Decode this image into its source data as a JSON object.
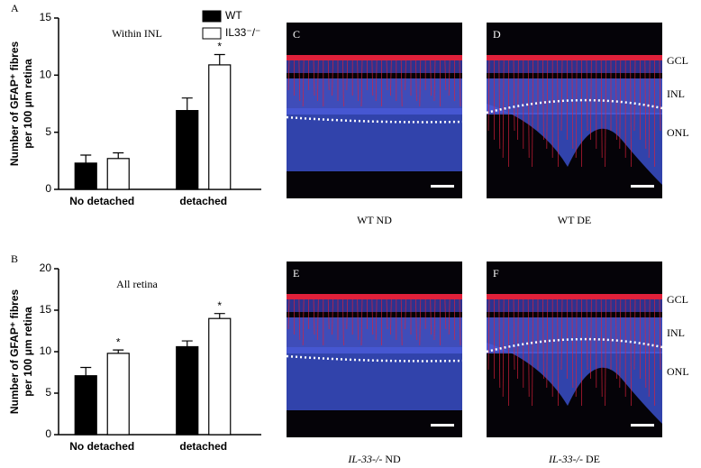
{
  "chart_data": [
    {
      "type": "bar",
      "panel": "A",
      "title": "Within INL",
      "y_label": [
        "Number of GFAP⁺ fibres",
        "per 100 μm retina"
      ],
      "categories": [
        "No detached",
        "detached"
      ],
      "series": [
        {
          "name": "WT",
          "color": "#000000",
          "values": [
            2.3,
            6.9
          ],
          "errors": [
            0.7,
            1.1
          ],
          "marks": [
            null,
            null
          ]
        },
        {
          "name": "IL33⁻/⁻",
          "color": "#ffffff",
          "values": [
            2.7,
            10.9
          ],
          "errors": [
            0.5,
            0.9
          ],
          "marks": [
            null,
            "*"
          ]
        }
      ],
      "ylim": [
        0,
        15
      ],
      "yticks": [
        0,
        5,
        10,
        15
      ],
      "grid": false,
      "legend": true
    },
    {
      "type": "bar",
      "panel": "B",
      "title": "All retina",
      "y_label": [
        "Number of GFAP⁺ fibres",
        "per 100 μm retina"
      ],
      "categories": [
        "No detached",
        "detached"
      ],
      "series": [
        {
          "name": "WT",
          "color": "#000000",
          "values": [
            7.1,
            10.6
          ],
          "errors": [
            1.0,
            0.7
          ],
          "marks": [
            null,
            null
          ]
        },
        {
          "name": "IL33⁻/⁻",
          "color": "#ffffff",
          "values": [
            9.8,
            14.0
          ],
          "errors": [
            0.4,
            0.6
          ],
          "marks": [
            "*",
            "*"
          ]
        }
      ],
      "ylim": [
        0,
        20
      ],
      "yticks": [
        0,
        5,
        10,
        15,
        20
      ],
      "grid": false,
      "legend": false
    }
  ],
  "panels": [
    {
      "letter": "C",
      "genotype": "WT",
      "condition": "ND",
      "italic": false,
      "layers": []
    },
    {
      "letter": "D",
      "genotype": "WT",
      "condition": "DE",
      "italic": false,
      "layers": [
        "GCL",
        "INL",
        "ONL"
      ]
    },
    {
      "letter": "E",
      "genotype": "IL-33-/-",
      "condition": "ND",
      "italic": true,
      "layers": []
    },
    {
      "letter": "F",
      "genotype": "IL-33-/-",
      "condition": "DE",
      "italic": true,
      "layers": [
        "GCL",
        "INL",
        "ONL"
      ]
    }
  ]
}
